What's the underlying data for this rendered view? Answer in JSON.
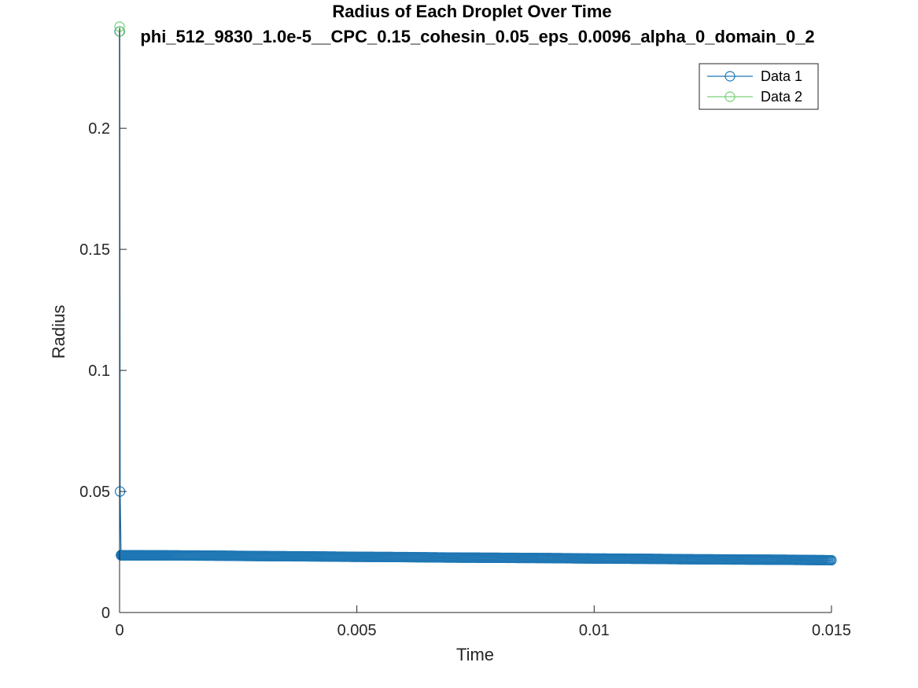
{
  "chart_data": {
    "type": "line",
    "title": "Radius of Each Droplet Over Time",
    "subtitle": "phi_512_9830_1.0e-5__CPC_0.15_cohesin_0.05_eps_0.0096_alpha_0_domain_0_2",
    "xlabel": "Time",
    "ylabel": "Radius",
    "xlim": [
      0,
      0.015
    ],
    "ylim": [
      0,
      0.24
    ],
    "x_ticks": [
      0,
      0.005,
      0.01,
      0.015
    ],
    "x_tick_labels": [
      "0",
      "0.005",
      "0.01",
      "0.015"
    ],
    "y_ticks": [
      0,
      0.05,
      0.1,
      0.15,
      0.2
    ],
    "y_tick_labels": [
      "0",
      "0.05",
      "0.1",
      "0.15",
      "0.2"
    ],
    "grid": false,
    "legend_position": "top-right",
    "series": [
      {
        "name": "Data 1",
        "color": "#1f77b4",
        "marker": "circle",
        "x": [
          0,
          1e-05,
          3e-05,
          0.0001,
          0.0005,
          0.001,
          0.002,
          0.003,
          0.004,
          0.005,
          0.006,
          0.007,
          0.008,
          0.009,
          0.01,
          0.011,
          0.012,
          0.013,
          0.014,
          0.015
        ],
        "y": [
          0.24,
          0.05,
          0.0237,
          0.0236,
          0.0236,
          0.0236,
          0.0235,
          0.0233,
          0.0232,
          0.023,
          0.0229,
          0.0227,
          0.0226,
          0.0225,
          0.0223,
          0.0222,
          0.022,
          0.0219,
          0.0218,
          0.0216
        ]
      },
      {
        "name": "Data 2",
        "color": "#77d177",
        "marker": "circle",
        "x": [
          0,
          1e-05
        ],
        "y": [
          0.242,
          0.24
        ]
      }
    ]
  }
}
